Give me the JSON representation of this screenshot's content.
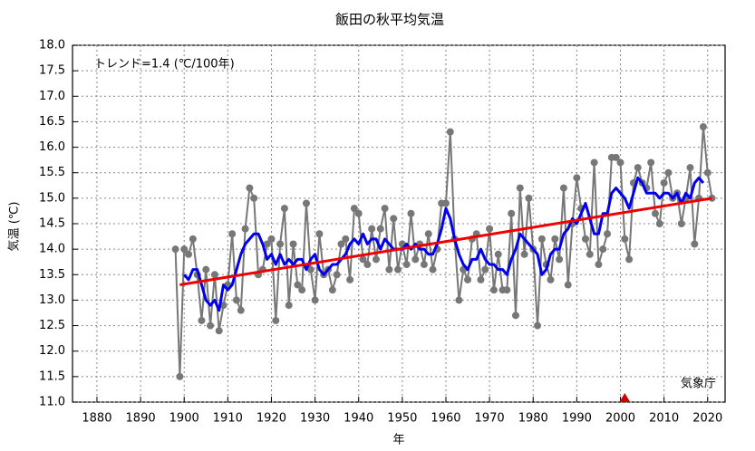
{
  "chart_data": {
    "type": "line",
    "title": "飯田の秋平均気温",
    "xlabel": "年",
    "ylabel": "気温 (℃)",
    "annotation": "トレンド=1.4 (℃/100年)",
    "source": "気象庁",
    "xlim": [
      1874.4,
      2024
    ],
    "ylim": [
      11,
      18
    ],
    "xticks": [
      1880,
      1890,
      1900,
      1910,
      1920,
      1930,
      1940,
      1950,
      1960,
      1970,
      1980,
      1990,
      2000,
      2010,
      2020
    ],
    "yticks": [
      {
        "value": 11,
        "label": "11.0"
      },
      11.5,
      {
        "value": 12,
        "label": "12.0"
      },
      12.5,
      {
        "value": 13,
        "label": "13.0"
      },
      13.5,
      {
        "value": 14,
        "label": "14.0"
      },
      14.5,
      {
        "value": 15,
        "label": "15.0"
      },
      15.5,
      {
        "value": 16,
        "label": "16.0"
      },
      16.5,
      {
        "value": 17,
        "label": "17.0"
      },
      17.5,
      {
        "value": 18,
        "label": "18.0"
      }
    ],
    "grid": true,
    "x": [
      1898,
      1899,
      1900,
      1901,
      1902,
      1903,
      1904,
      1905,
      1906,
      1907,
      1908,
      1909,
      1910,
      1911,
      1912,
      1913,
      1914,
      1915,
      1916,
      1917,
      1918,
      1919,
      1920,
      1921,
      1922,
      1923,
      1924,
      1925,
      1926,
      1927,
      1928,
      1929,
      1930,
      1931,
      1932,
      1933,
      1934,
      1935,
      1936,
      1937,
      1938,
      1939,
      1940,
      1941,
      1942,
      1943,
      1944,
      1945,
      1946,
      1947,
      1948,
      1949,
      1950,
      1951,
      1952,
      1953,
      1954,
      1955,
      1956,
      1957,
      1958,
      1959,
      1960,
      1961,
      1962,
      1963,
      1964,
      1965,
      1966,
      1967,
      1968,
      1969,
      1970,
      1971,
      1972,
      1973,
      1974,
      1975,
      1976,
      1977,
      1978,
      1979,
      1980,
      1981,
      1982,
      1983,
      1984,
      1985,
      1986,
      1987,
      1988,
      1989,
      1990,
      1991,
      1992,
      1993,
      1994,
      1995,
      1996,
      1997,
      1998,
      1999,
      2000,
      2001,
      2002,
      2003,
      2004,
      2005,
      2006,
      2007,
      2008,
      2009,
      2010,
      2011,
      2012,
      2013,
      2014,
      2015,
      2016,
      2017,
      2018,
      2019,
      2020,
      2021
    ],
    "series": [
      {
        "color": "#777777",
        "markers": true,
        "values": [
          14.0,
          11.5,
          14.0,
          13.9,
          14.2,
          13.5,
          12.6,
          13.6,
          12.5,
          13.5,
          12.4,
          12.9,
          13.3,
          14.3,
          13.0,
          12.8,
          14.4,
          15.2,
          15.0,
          13.5,
          13.6,
          14.1,
          14.2,
          12.6,
          14.1,
          14.8,
          12.9,
          14.1,
          13.3,
          13.2,
          14.9,
          13.6,
          13.0,
          14.3,
          13.5,
          13.6,
          13.2,
          13.5,
          14.1,
          14.2,
          13.4,
          14.8,
          14.7,
          13.8,
          13.7,
          14.4,
          13.8,
          14.4,
          14.8,
          13.6,
          14.6,
          13.6,
          14.1,
          13.7,
          14.7,
          13.8,
          14.1,
          13.7,
          14.3,
          13.6,
          14.0,
          14.9,
          14.9,
          16.3,
          14.2,
          13.0,
          13.6,
          13.4,
          14.2,
          14.3,
          13.4,
          13.6,
          14.4,
          13.2,
          13.9,
          13.2,
          13.2,
          14.7,
          12.7,
          15.2,
          13.9,
          15.0,
          14.0,
          12.5,
          14.2,
          13.7,
          13.4,
          14.2,
          13.8,
          15.2,
          13.3,
          14.5,
          15.4,
          14.8,
          14.2,
          13.9,
          15.7,
          13.7,
          14.0,
          14.3,
          15.8,
          15.8,
          15.7,
          14.2,
          13.8,
          15.3,
          15.6,
          15.3,
          15.2,
          15.7,
          14.7,
          14.5,
          15.3,
          15.5,
          15.0,
          15.1,
          14.5,
          15.0,
          15.6,
          14.1,
          15.0,
          16.4,
          15.5,
          15.0
        ]
      },
      {
        "color": "#0000ee",
        "markers": false,
        "values": [
          null,
          null,
          13.5,
          13.4,
          13.6,
          13.6,
          13.3,
          13.0,
          12.9,
          13.0,
          12.8,
          13.3,
          13.2,
          13.3,
          13.6,
          13.9,
          14.1,
          14.2,
          14.3,
          14.3,
          14.1,
          13.8,
          13.9,
          13.7,
          13.9,
          13.7,
          13.8,
          13.7,
          13.8,
          13.8,
          13.6,
          13.8,
          13.9,
          13.6,
          13.5,
          13.6,
          13.7,
          13.7,
          13.8,
          13.9,
          14.1,
          14.2,
          14.1,
          14.3,
          14.1,
          14.2,
          14.2,
          14.0,
          14.2,
          14.1,
          14.0,
          14.0,
          14.0,
          14.1,
          14.0,
          14.1,
          14.0,
          14.0,
          13.9,
          13.9,
          14.1,
          14.4,
          14.8,
          14.6,
          14.2,
          13.9,
          13.7,
          13.6,
          13.8,
          13.8,
          14.0,
          13.8,
          13.7,
          13.7,
          13.6,
          13.6,
          13.5,
          13.8,
          14.0,
          14.3,
          14.2,
          14.1,
          14.0,
          13.9,
          13.5,
          13.6,
          13.9,
          14.0,
          14.0,
          14.3,
          14.4,
          14.6,
          14.5,
          14.7,
          14.9,
          14.6,
          14.3,
          14.3,
          14.7,
          14.7,
          15.1,
          15.2,
          15.1,
          15.0,
          14.8,
          15.1,
          15.4,
          15.3,
          15.1,
          15.1,
          15.1,
          15.0,
          15.1,
          15.1,
          15.0,
          15.1,
          14.9,
          15.1,
          15.0,
          15.3,
          15.4,
          15.3,
          null,
          null
        ]
      }
    ],
    "trend": {
      "color": "#ee0000",
      "x": [
        1899,
        2021
      ],
      "values": [
        13.3,
        15.0
      ]
    },
    "relocation": {
      "color": "#cc0000",
      "x": 2001
    }
  }
}
